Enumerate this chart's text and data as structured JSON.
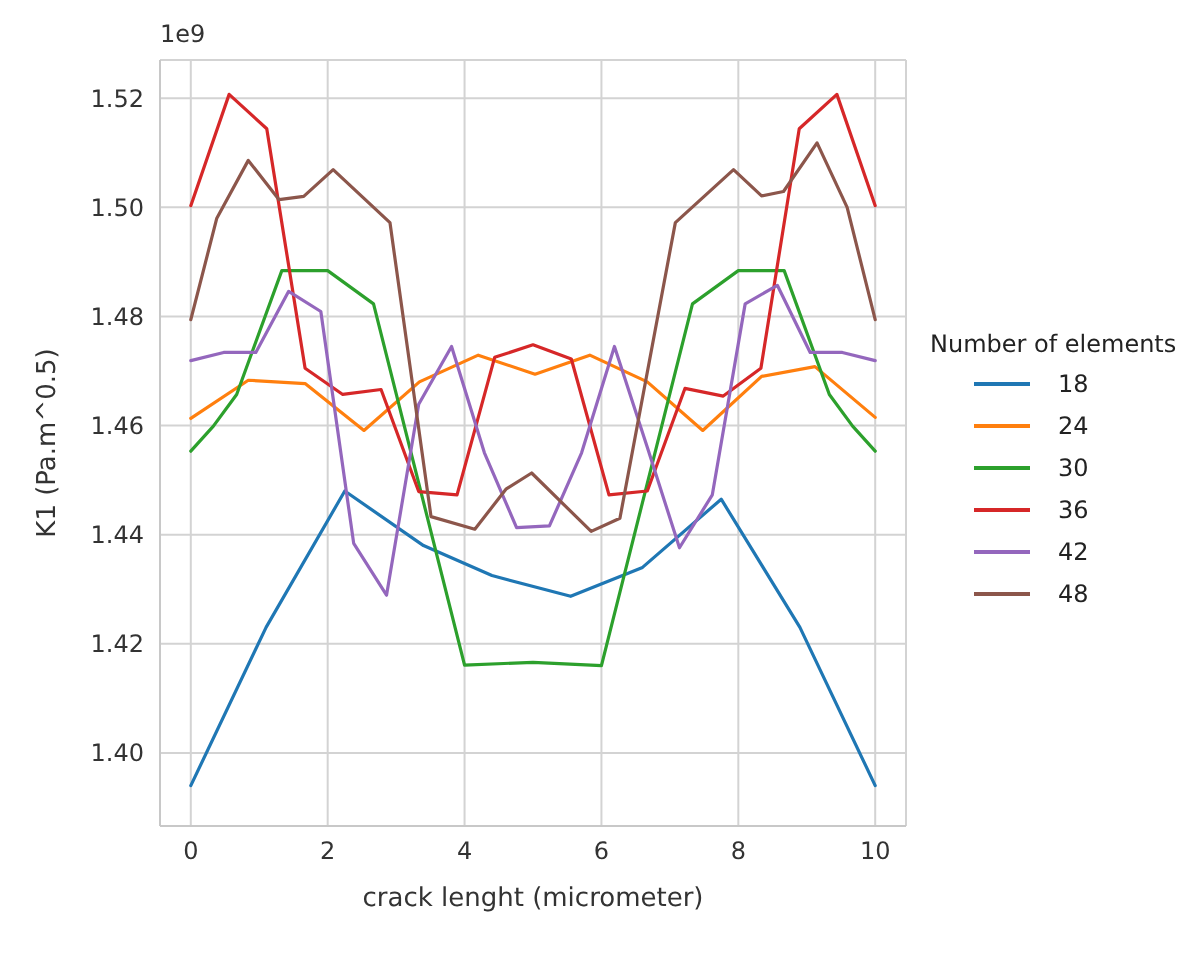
{
  "chart_data": {
    "type": "line",
    "xlabel": "crack lenght (micrometer)",
    "ylabel": "K1 (Pa.m^0.5)",
    "legend_title": "Number of elements",
    "annotations": [
      "1e9"
    ],
    "xlim": [
      -0.45,
      10.45
    ],
    "ylim": [
      1.3866,
      1.527
    ],
    "xticks": [
      0,
      2,
      4,
      6,
      8,
      10
    ],
    "yticks": [
      {
        "value": 1.4,
        "label": "1.40"
      },
      {
        "value": 1.42,
        "label": "1.42"
      },
      {
        "value": 1.44,
        "label": "1.44"
      },
      {
        "value": 1.46,
        "label": "1.46"
      },
      {
        "value": 1.48,
        "label": "1.48"
      },
      {
        "value": 1.5,
        "label": "1.50"
      },
      {
        "value": 1.52,
        "label": "1.52"
      }
    ],
    "grid": true,
    "legend": "right",
    "marker": "none",
    "line_style": "solid",
    "series": [
      {
        "name": "18",
        "color": "#1f77b4",
        "x": [
          0,
          1.1,
          2.25,
          3.4,
          4.4,
          5.55,
          6.6,
          7.75,
          8.9,
          10
        ],
        "values": [
          1.394,
          1.423,
          1.448,
          1.438,
          1.4325,
          1.4287,
          1.434,
          1.4465,
          1.423,
          1.394
        ]
      },
      {
        "name": "24",
        "color": "#ff7f0e",
        "x": [
          0,
          0.84,
          1.67,
          2.53,
          3.34,
          4.2,
          5.03,
          5.83,
          6.67,
          7.48,
          8.34,
          9.12,
          10
        ],
        "values": [
          1.4613,
          1.4683,
          1.4677,
          1.4591,
          1.468,
          1.4729,
          1.4694,
          1.4729,
          1.468,
          1.4591,
          1.469,
          1.4708,
          1.4615
        ]
      },
      {
        "name": "30",
        "color": "#2ca02c",
        "x": [
          0,
          0.33,
          0.67,
          1.33,
          2.0,
          2.67,
          4.0,
          5.0,
          6.0,
          7.33,
          8.0,
          8.67,
          9.33,
          9.67,
          10
        ],
        "values": [
          1.4553,
          1.4599,
          1.4657,
          1.4884,
          1.4884,
          1.4823,
          1.4161,
          1.4166,
          1.416,
          1.4823,
          1.4884,
          1.4884,
          1.4657,
          1.4599,
          1.4553
        ]
      },
      {
        "name": "36",
        "color": "#d62728",
        "x": [
          0,
          0.56,
          1.11,
          1.67,
          2.22,
          2.78,
          3.33,
          3.89,
          4.44,
          5.0,
          5.56,
          6.11,
          6.67,
          7.22,
          7.78,
          8.33,
          8.89,
          9.44,
          10
        ],
        "values": [
          1.5003,
          1.5207,
          1.5144,
          1.4705,
          1.4657,
          1.4666,
          1.4479,
          1.4473,
          1.4725,
          1.4748,
          1.4722,
          1.4473,
          1.448,
          1.4668,
          1.4654,
          1.4705,
          1.5144,
          1.5207,
          1.5003
        ]
      },
      {
        "name": "42",
        "color": "#9467bd",
        "x": [
          0,
          0.48,
          0.95,
          1.43,
          1.9,
          2.38,
          2.86,
          3.33,
          3.81,
          4.29,
          4.76,
          5.24,
          5.71,
          6.19,
          6.67,
          7.14,
          7.62,
          8.1,
          8.57,
          9.05,
          9.52,
          10
        ],
        "values": [
          1.4719,
          1.4734,
          1.4734,
          1.4846,
          1.4809,
          1.4384,
          1.4289,
          1.4639,
          1.4745,
          1.455,
          1.4413,
          1.4416,
          1.455,
          1.4745,
          1.456,
          1.4376,
          1.4473,
          1.4823,
          1.4857,
          1.4734,
          1.4734,
          1.4719
        ]
      },
      {
        "name": "48",
        "color": "#8c564b",
        "x": [
          0,
          0.38,
          0.84,
          1.29,
          1.65,
          2.08,
          2.91,
          3.51,
          4.15,
          4.61,
          4.98,
          5.85,
          6.27,
          7.08,
          7.93,
          8.34,
          8.66,
          9.15,
          9.59,
          10
        ],
        "values": [
          1.4794,
          1.498,
          1.5086,
          1.5014,
          1.502,
          1.5069,
          1.4972,
          1.4433,
          1.441,
          1.4484,
          1.4513,
          1.4406,
          1.443,
          1.4972,
          1.5069,
          1.5021,
          1.5029,
          1.5118,
          1.5,
          1.4794
        ]
      }
    ]
  }
}
